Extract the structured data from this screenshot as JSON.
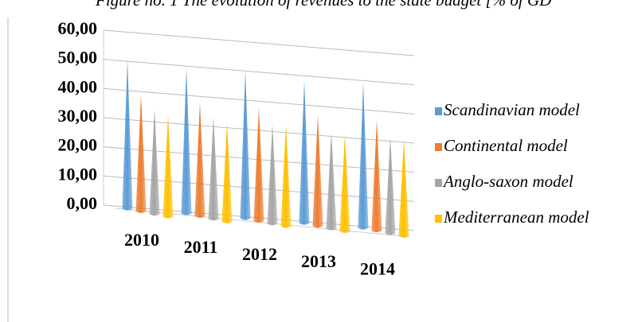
{
  "chart_data": {
    "type": "cone3d",
    "title": "Figure no. 1 The evolution of revenues to the state budget [% of GD",
    "categories": [
      "2010",
      "2011",
      "2012",
      "2013",
      "2014"
    ],
    "series": [
      {
        "name": "Scandinavian model",
        "color": "#5b9bd5",
        "values": [
          51,
          50,
          51,
          49,
          50
        ]
      },
      {
        "name": "Continental model",
        "color": "#ed7d31",
        "values": [
          40,
          39,
          39,
          38,
          38
        ]
      },
      {
        "name": "Anglo-saxon model",
        "color": "#a5a5a5",
        "values": [
          36,
          35,
          34,
          33,
          33
        ]
      },
      {
        "name": "Mediterranean model",
        "color": "#ffc000",
        "values": [
          35,
          34,
          35,
          33,
          33
        ]
      }
    ],
    "ylim": [
      0,
      60
    ],
    "yticks": [
      {
        "value": 0,
        "label": "0,00"
      },
      {
        "value": 10,
        "label": "10,00"
      },
      {
        "value": 20,
        "label": "20,00"
      },
      {
        "value": 30,
        "label": "30,00"
      },
      {
        "value": 40,
        "label": "40,00"
      },
      {
        "value": 50,
        "label": "50,00"
      },
      {
        "value": 60,
        "label": "60,00"
      }
    ],
    "grid": true,
    "legend": "right"
  }
}
